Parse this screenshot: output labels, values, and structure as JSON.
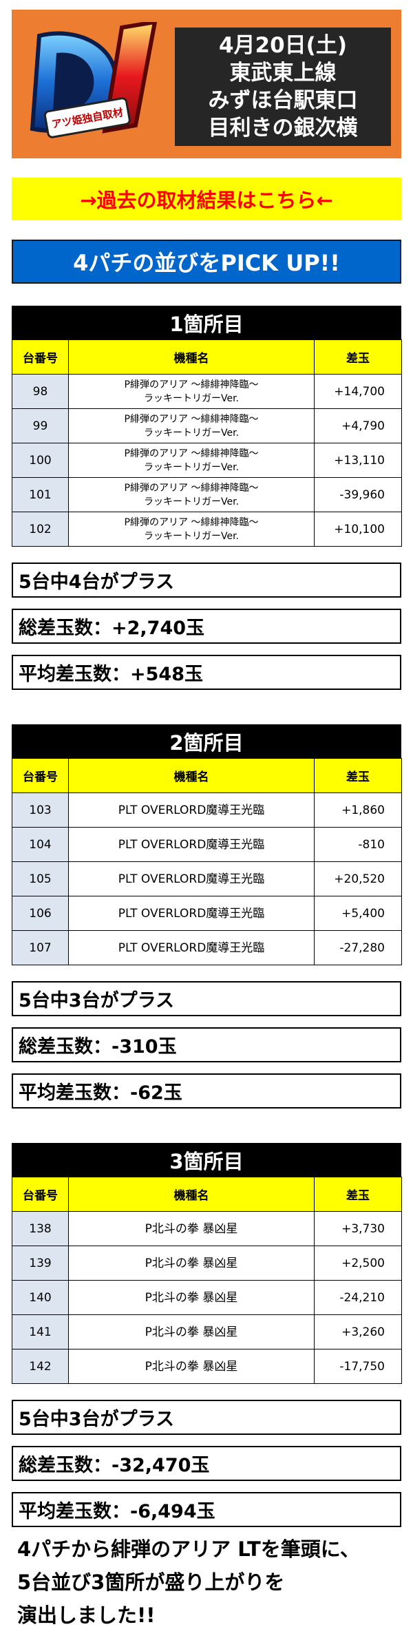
{
  "header": {
    "logo_text": "D1",
    "logo_sub": "アツ姫独自取材",
    "title_lines": [
      "4月20日(土)",
      "東武東上線",
      "みずほ台駅東口",
      "目利きの銀次横"
    ]
  },
  "past_link": "→過去の取材結果はこちら←",
  "banner": "4パチの並びをPICK UP!!",
  "table_headers": {
    "num": "台番号",
    "model": "機種名",
    "diff": "差玉"
  },
  "sections": [
    {
      "title": "1箇所目",
      "rows": [
        {
          "num": "98",
          "model_line1": "P緋弾のアリア ～緋緋神降臨～",
          "model_line2": "ラッキートリガーVer.",
          "diff": "+14,700"
        },
        {
          "num": "99",
          "model_line1": "P緋弾のアリア ～緋緋神降臨～",
          "model_line2": "ラッキートリガーVer.",
          "diff": "+4,790"
        },
        {
          "num": "100",
          "model_line1": "P緋弾のアリア ～緋緋神降臨～",
          "model_line2": "ラッキートリガーVer.",
          "diff": "+13,110"
        },
        {
          "num": "101",
          "model_line1": "P緋弾のアリア ～緋緋神降臨～",
          "model_line2": "ラッキートリガーVer.",
          "diff": "-39,960"
        },
        {
          "num": "102",
          "model_line1": "P緋弾のアリア ～緋緋神降臨～",
          "model_line2": "ラッキートリガーVer.",
          "diff": "+10,100"
        }
      ],
      "summary": "5台中4台がプラス",
      "total": "総差玉数：+2,740玉",
      "average": "平均差玉数：+548玉"
    },
    {
      "title": "2箇所目",
      "rows": [
        {
          "num": "103",
          "model": "PLT OVERLORD魔導王光臨",
          "diff": "+1,860"
        },
        {
          "num": "104",
          "model": "PLT OVERLORD魔導王光臨",
          "diff": "-810"
        },
        {
          "num": "105",
          "model": "PLT OVERLORD魔導王光臨",
          "diff": "+20,520"
        },
        {
          "num": "106",
          "model": "PLT OVERLORD魔導王光臨",
          "diff": "+5,400"
        },
        {
          "num": "107",
          "model": "PLT OVERLORD魔導王光臨",
          "diff": "-27,280"
        }
      ],
      "summary": "5台中3台がプラス",
      "total": "総差玉数：-310玉",
      "average": "平均差玉数：-62玉"
    },
    {
      "title": "3箇所目",
      "rows": [
        {
          "num": "138",
          "model": "P北斗の拳 暴凶星",
          "diff": "+3,730"
        },
        {
          "num": "139",
          "model": "P北斗の拳 暴凶星",
          "diff": "+2,500"
        },
        {
          "num": "140",
          "model": "P北斗の拳 暴凶星",
          "diff": "-24,210"
        },
        {
          "num": "141",
          "model": "P北斗の拳 暴凶星",
          "diff": "+3,260"
        },
        {
          "num": "142",
          "model": "P北斗の拳 暴凶星",
          "diff": "-17,750"
        }
      ],
      "summary": "5台中3台がプラス",
      "total": "総差玉数：-32,470玉",
      "average": "平均差玉数：-6,494玉"
    }
  ],
  "footer_lines": [
    "4パチから緋弾のアリア LTを筆頭に、",
    "5台並び3箇所が盛り上がりを",
    "演出しました!!"
  ]
}
